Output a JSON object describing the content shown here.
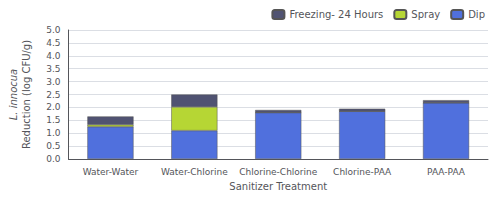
{
  "chart_data": {
    "type": "bar",
    "stacked": true,
    "xlabel": "Sanitizer Treatment",
    "ylabel": "L. innocua\nReduction (log CFU/g)",
    "categories": [
      "Water-Water",
      "Water-Chlorine",
      "Chlorine-Chlorine",
      "Chlorine-PAA",
      "PAA-PAA"
    ],
    "series": [
      {
        "name": "Dip",
        "values": [
          1.25,
          1.1,
          1.8,
          1.85,
          2.18
        ]
      },
      {
        "name": "Spray",
        "values": [
          0.08,
          0.92,
          0.0,
          0.0,
          0.0
        ]
      },
      {
        "name": "Freezing- 24 Hours",
        "values": [
          0.32,
          0.48,
          0.1,
          0.1,
          0.1
        ]
      }
    ],
    "ylim": [
      0.0,
      5.0
    ],
    "yticks": [
      {
        "value": 0,
        "label": "0.0"
      },
      0.5,
      {
        "value": 1,
        "label": "1.0"
      },
      1.5,
      {
        "value": 2,
        "label": "2.0"
      },
      2.5,
      {
        "value": 3,
        "label": "3.0"
      },
      3.5,
      {
        "value": 4,
        "label": "4.0"
      },
      4.5,
      {
        "value": 5,
        "label": "5.0"
      }
    ],
    "grid": true,
    "legend": "upper right"
  }
}
